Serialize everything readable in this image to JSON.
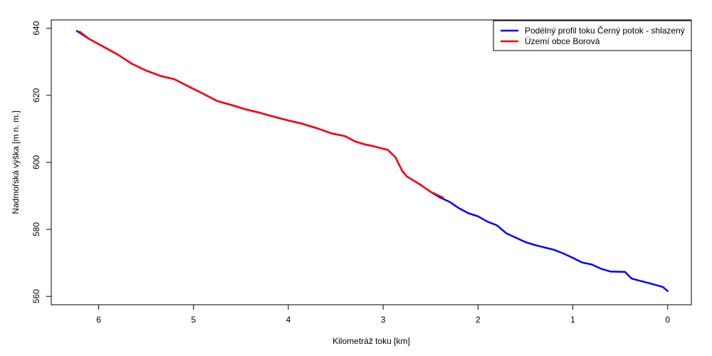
{
  "chart_data": {
    "type": "line",
    "title": "",
    "xlabel": "Kilometráž toku [km]",
    "ylabel": "Nadmořská výška [m n. m.]",
    "xlim": [
      6.5,
      -0.25
    ],
    "ylim": [
      557.5,
      642.5
    ],
    "x_reversed": true,
    "x_ticks": [
      6,
      5,
      4,
      3,
      2,
      1,
      0
    ],
    "y_ticks": [
      560,
      580,
      600,
      620,
      640
    ],
    "grid": false,
    "legend_position": "top-right",
    "series": [
      {
        "name": "Podélný profil toku Černý potok - shlazený",
        "color": "#0000ff",
        "x": [
          6.23,
          6.1,
          5.95,
          5.8,
          5.65,
          5.5,
          5.35,
          5.2,
          5.05,
          4.9,
          4.75,
          4.6,
          4.45,
          4.3,
          4.15,
          4.0,
          3.85,
          3.7,
          3.55,
          3.4,
          3.3,
          3.2,
          3.1,
          2.95,
          2.87,
          2.8,
          2.75,
          2.6,
          2.5,
          2.4,
          2.3,
          2.2,
          2.1,
          2.0,
          1.9,
          1.8,
          1.7,
          1.6,
          1.5,
          1.4,
          1.3,
          1.2,
          1.1,
          1.0,
          0.9,
          0.8,
          0.7,
          0.6,
          0.45,
          0.38,
          0.3,
          0.15,
          0.05,
          0.0
        ],
        "y": [
          639.2,
          636.8,
          634.5,
          632.2,
          629.4,
          627.4,
          625.8,
          624.8,
          622.6,
          620.5,
          618.3,
          617.1,
          615.8,
          614.8,
          613.6,
          612.5,
          611.5,
          610.2,
          608.7,
          607.8,
          606.3,
          605.4,
          604.8,
          603.7,
          601.5,
          597.5,
          595.8,
          593.2,
          591.2,
          589.5,
          588.2,
          586.3,
          584.8,
          583.9,
          582.3,
          581.2,
          578.8,
          577.5,
          576.2,
          575.3,
          574.6,
          573.9,
          572.8,
          571.5,
          570.1,
          569.5,
          568.2,
          567.4,
          567.3,
          565.3,
          564.7,
          563.6,
          562.8,
          561.6
        ]
      },
      {
        "name": "Území obce Borová",
        "color": "#ff0000",
        "x": [
          6.2,
          6.1,
          5.95,
          5.8,
          5.65,
          5.5,
          5.35,
          5.2,
          5.05,
          4.9,
          4.75,
          4.6,
          4.45,
          4.3,
          4.15,
          4.0,
          3.85,
          3.7,
          3.55,
          3.4,
          3.3,
          3.2,
          3.1,
          2.95,
          2.87,
          2.8,
          2.75,
          2.6,
          2.5,
          2.37
        ],
        "y": [
          639.0,
          636.8,
          634.5,
          632.2,
          629.4,
          627.4,
          625.8,
          624.8,
          622.6,
          620.5,
          618.3,
          617.1,
          615.8,
          614.8,
          613.6,
          612.5,
          611.5,
          610.2,
          608.7,
          607.8,
          606.3,
          605.4,
          604.8,
          603.7,
          601.5,
          597.5,
          595.8,
          593.2,
          591.2,
          589.5
        ]
      }
    ]
  }
}
